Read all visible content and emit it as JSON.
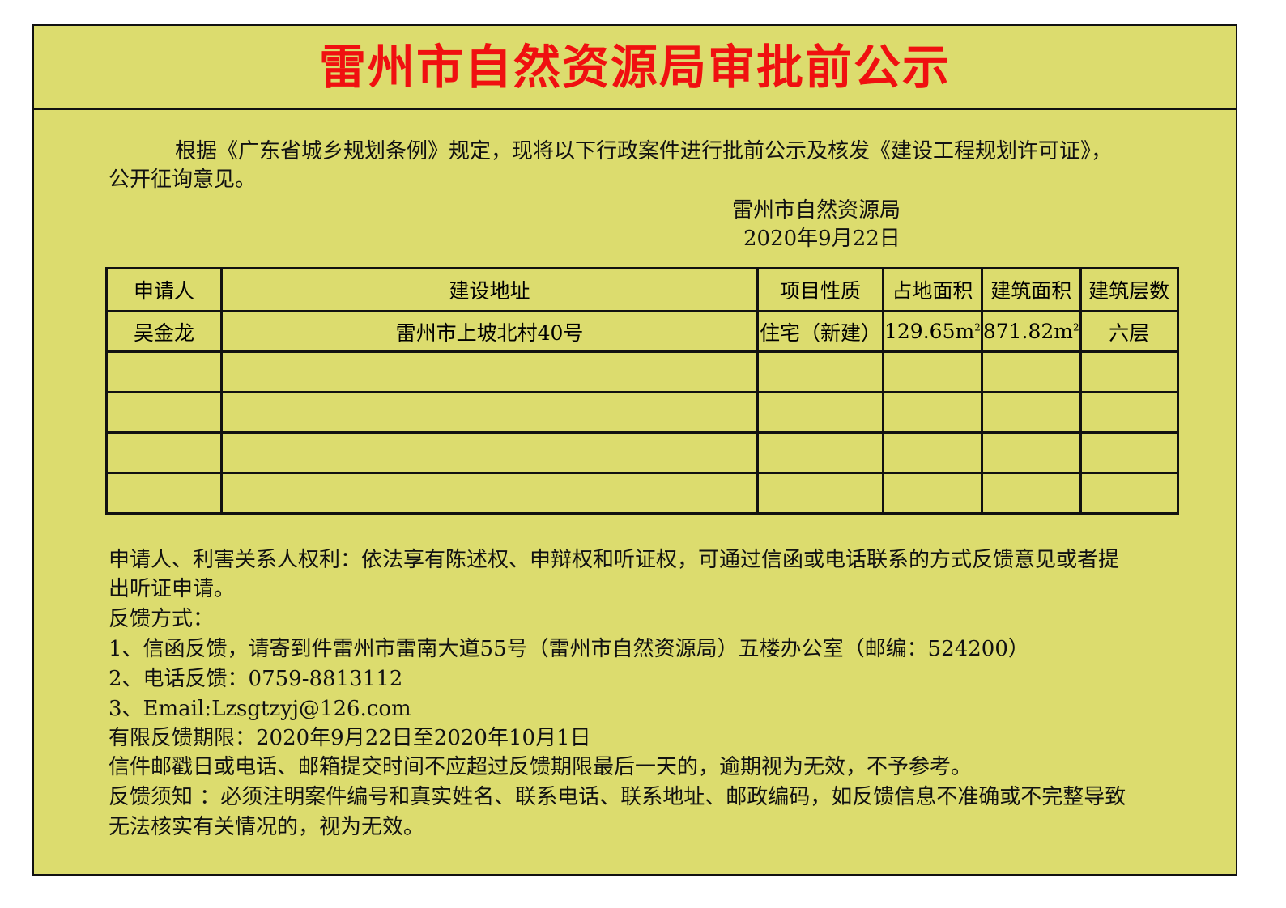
{
  "title": "雷州市自然资源局审批前公示",
  "intro": {
    "line1": "根据《广东省城乡规划条例》规定，现将以下行政案件进行批前公示及核发《建设工程规划许可证》，",
    "line2": "公开征询意见。"
  },
  "signature": {
    "org": "雷州市自然资源局",
    "date": "2020年9月22日"
  },
  "table": {
    "headers": [
      "申请人",
      "建设地址",
      "项目性质",
      "占地面积",
      "建筑面积",
      "建筑层数"
    ],
    "rows": [
      {
        "applicant": "吴金龙",
        "address": "雷州市上坡北村40号",
        "nature": "住宅（新建）",
        "land_area": "129.65m",
        "floor_area": "871.82m",
        "floors": "六层",
        "unit_sup": "2"
      }
    ]
  },
  "notice": {
    "rights1": "申请人、利害关系人权利：依法享有陈述权、申辩权和听证权，可通过信函或电话联系的方式反馈意见或者提",
    "rights2": "出听证申请。",
    "methods": "反馈方式：",
    "m1": "1、信函反馈，请寄到件雷州市雷南大道55号（雷州市自然资源局）五楼办公室（邮编：524200）",
    "m2": "2、电话反馈：0759-8813112",
    "m3": "3、Email:Lzsgtzyj@126.com",
    "period": "有限反馈期限：2020年9月22日至2020年10月1日",
    "late": "信件邮戳日或电话、邮箱提交时间不应超过反馈期限最后一天的，逾期视为无效，不予参考。",
    "req1": "反馈须知 ：必须注明案件编号和真实姓名、联系电话、联系地址、邮政编码，如反馈信息不准确或不完整导致",
    "req2": "无法核实有关情况的，视为无效。"
  },
  "colors": {
    "background": "#dcdc6e",
    "title": "#f01010"
  }
}
